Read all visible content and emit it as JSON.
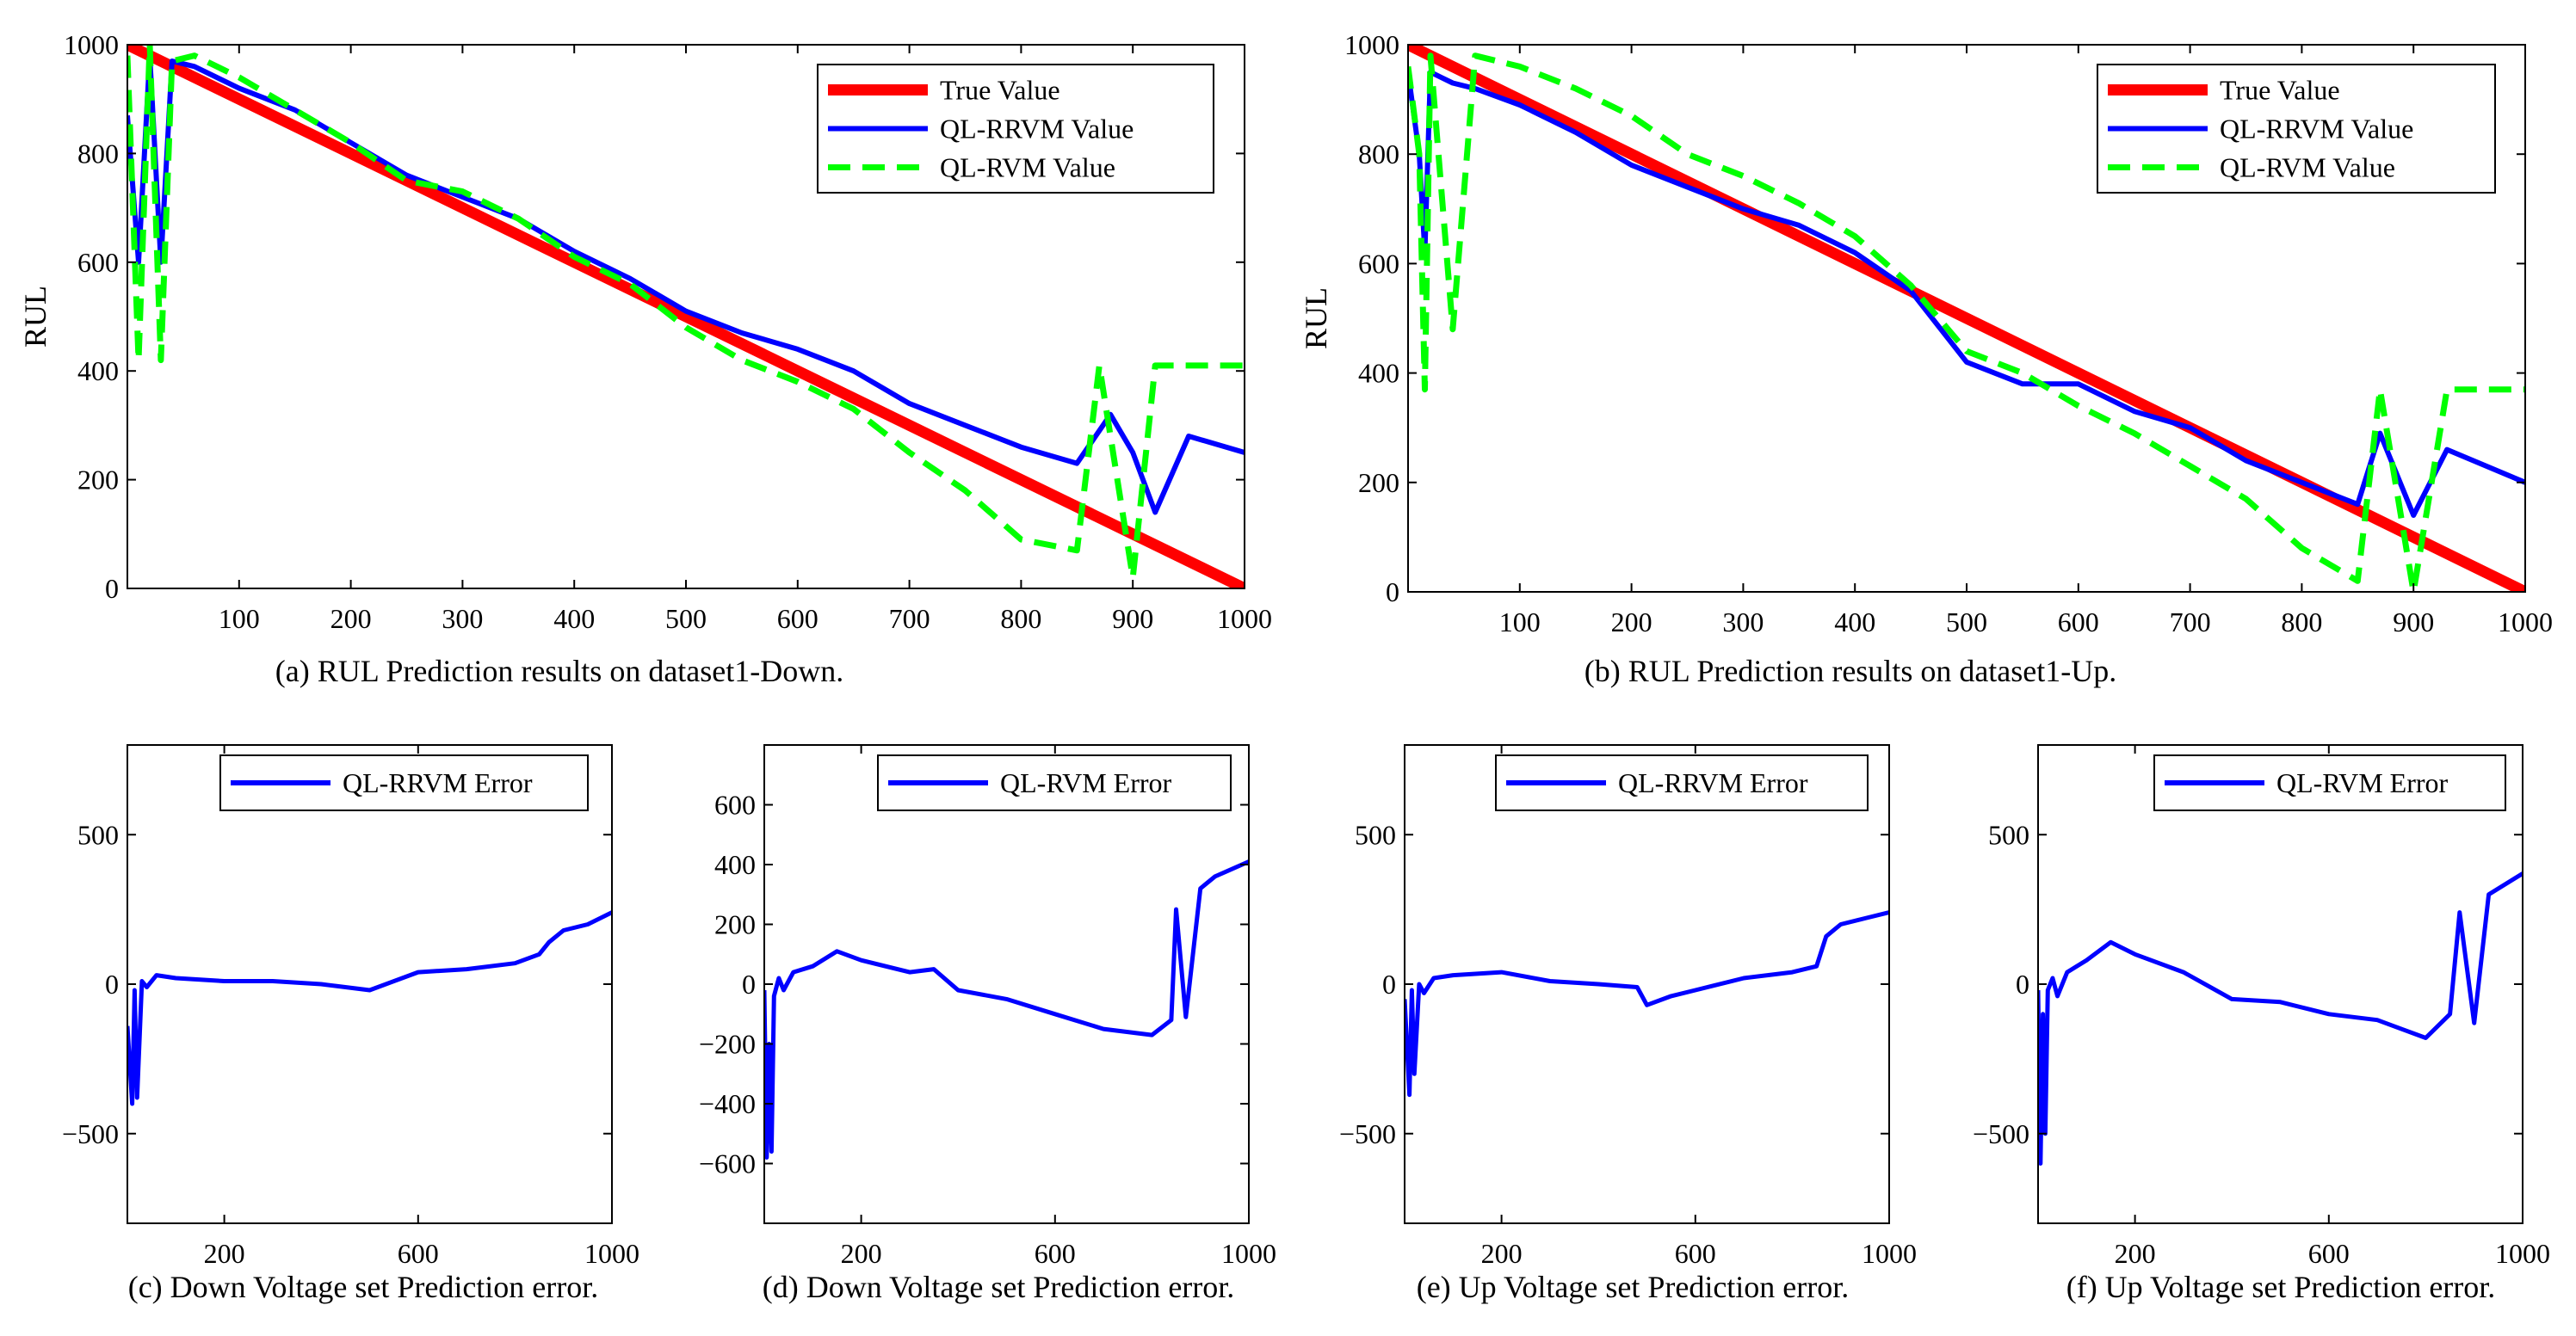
{
  "chart_data": [
    {
      "type": "line",
      "caption": "(a) RUL Prediction results on dataset1-Down.",
      "ylabel": "RUL",
      "xlim": [
        0,
        1000
      ],
      "ylim": [
        0,
        1000
      ],
      "xticks": [
        100,
        200,
        300,
        400,
        500,
        600,
        700,
        800,
        900,
        1000
      ],
      "yticks": [
        0,
        200,
        400,
        600,
        800,
        1000
      ],
      "legend_position": "top-right",
      "series": [
        {
          "name": "True Value",
          "color": "#ff0000",
          "style": "solid-thick",
          "x": [
            0,
            1000
          ],
          "y": [
            1000,
            0
          ]
        },
        {
          "name": "QL-RRVM Value",
          "color": "#0000ff",
          "style": "solid",
          "x": [
            0,
            10,
            20,
            30,
            40,
            60,
            100,
            150,
            200,
            250,
            300,
            350,
            400,
            450,
            500,
            550,
            600,
            650,
            700,
            750,
            800,
            850,
            880,
            900,
            920,
            950,
            1000
          ],
          "y": [
            870,
            600,
            980,
            600,
            970,
            960,
            920,
            880,
            820,
            760,
            720,
            680,
            620,
            570,
            510,
            470,
            440,
            400,
            340,
            300,
            260,
            230,
            320,
            250,
            140,
            280,
            250
          ]
        },
        {
          "name": "QL-RVM Value",
          "color": "#00ff00",
          "style": "dashed",
          "x": [
            0,
            10,
            20,
            30,
            40,
            60,
            100,
            150,
            200,
            250,
            300,
            350,
            400,
            450,
            500,
            550,
            600,
            650,
            700,
            750,
            800,
            850,
            870,
            900,
            920,
            950,
            1000
          ],
          "y": [
            980,
            420,
            1000,
            420,
            970,
            980,
            940,
            880,
            820,
            750,
            730,
            680,
            610,
            560,
            480,
            420,
            380,
            330,
            250,
            180,
            90,
            70,
            410,
            20,
            410,
            410,
            410
          ]
        }
      ]
    },
    {
      "type": "line",
      "caption": "(b) RUL Prediction results on dataset1-Up.",
      "ylabel": "RUL",
      "xlim": [
        0,
        1000
      ],
      "ylim": [
        0,
        1000
      ],
      "xticks": [
        100,
        200,
        300,
        400,
        500,
        600,
        700,
        800,
        900,
        1000
      ],
      "yticks": [
        0,
        200,
        400,
        600,
        800,
        1000
      ],
      "legend_position": "top-right",
      "series": [
        {
          "name": "True Value",
          "color": "#ff0000",
          "style": "solid-thick",
          "x": [
            0,
            1000
          ],
          "y": [
            1000,
            0
          ]
        },
        {
          "name": "QL-RRVM Value",
          "color": "#0000ff",
          "style": "solid",
          "x": [
            0,
            10,
            15,
            20,
            30,
            40,
            60,
            100,
            150,
            200,
            250,
            300,
            350,
            400,
            450,
            500,
            550,
            600,
            650,
            700,
            750,
            800,
            850,
            870,
            900,
            930,
            1000
          ],
          "y": [
            950,
            800,
            620,
            950,
            940,
            930,
            920,
            890,
            840,
            780,
            740,
            700,
            670,
            620,
            550,
            420,
            380,
            380,
            330,
            300,
            240,
            200,
            160,
            290,
            140,
            260,
            200
          ]
        },
        {
          "name": "QL-RVM Value",
          "color": "#00ff00",
          "style": "dashed",
          "x": [
            0,
            10,
            15,
            20,
            40,
            60,
            100,
            150,
            200,
            250,
            300,
            350,
            400,
            450,
            500,
            550,
            600,
            650,
            700,
            750,
            800,
            850,
            870,
            900,
            930,
            950,
            1000
          ],
          "y": [
            960,
            800,
            370,
            980,
            480,
            980,
            960,
            920,
            870,
            800,
            760,
            710,
            650,
            560,
            440,
            400,
            340,
            290,
            230,
            170,
            80,
            20,
            370,
            0,
            370,
            370,
            370
          ]
        }
      ]
    },
    {
      "type": "line",
      "caption": "(c) Down Voltage set Prediction error.",
      "xlim": [
        0,
        1000
      ],
      "ylim": [
        -800,
        800
      ],
      "xticks": [
        200,
        600,
        1000
      ],
      "yticks": [
        -500,
        0,
        500
      ],
      "legend_position": "top-right",
      "series": [
        {
          "name": "QL-RRVM Error",
          "color": "#0000ff",
          "x": [
            0,
            10,
            15,
            20,
            30,
            40,
            60,
            100,
            200,
            300,
            400,
            500,
            600,
            700,
            800,
            850,
            870,
            900,
            950,
            1000
          ],
          "y": [
            -140,
            -400,
            -20,
            -380,
            10,
            -10,
            30,
            20,
            10,
            10,
            0,
            -20,
            40,
            50,
            70,
            100,
            140,
            180,
            200,
            240
          ]
        }
      ]
    },
    {
      "type": "line",
      "caption": "(d) Down Voltage set Prediction error.",
      "xlim": [
        0,
        1000
      ],
      "ylim": [
        -800,
        800
      ],
      "xticks": [
        200,
        600,
        1000
      ],
      "yticks": [
        -600,
        -400,
        -200,
        0,
        200,
        400,
        600
      ],
      "legend_position": "top-right",
      "series": [
        {
          "name": "QL-RVM Error",
          "color": "#0000ff",
          "x": [
            0,
            5,
            10,
            15,
            20,
            30,
            40,
            60,
            100,
            150,
            200,
            300,
            350,
            400,
            500,
            600,
            700,
            800,
            840,
            850,
            870,
            900,
            930,
            1000
          ],
          "y": [
            -20,
            -580,
            -200,
            -560,
            -40,
            20,
            -20,
            40,
            60,
            110,
            80,
            40,
            50,
            -20,
            -50,
            -100,
            -150,
            -170,
            -120,
            250,
            -110,
            320,
            360,
            410
          ]
        }
      ]
    },
    {
      "type": "line",
      "caption": "(e) Up Voltage set Prediction error.",
      "xlim": [
        0,
        1000
      ],
      "ylim": [
        -800,
        800
      ],
      "xticks": [
        200,
        600,
        1000
      ],
      "yticks": [
        -500,
        0,
        500
      ],
      "legend_position": "top-right",
      "series": [
        {
          "name": "QL-RRVM Error",
          "color": "#0000ff",
          "x": [
            0,
            10,
            15,
            20,
            30,
            40,
            60,
            100,
            200,
            300,
            400,
            480,
            500,
            550,
            600,
            700,
            800,
            850,
            870,
            900,
            950,
            1000
          ],
          "y": [
            -50,
            -370,
            -20,
            -300,
            0,
            -30,
            20,
            30,
            40,
            10,
            0,
            -10,
            -70,
            -40,
            -20,
            20,
            40,
            60,
            160,
            200,
            220,
            240
          ]
        }
      ]
    },
    {
      "type": "line",
      "caption": "(f) Up Voltage set Prediction error.",
      "xlim": [
        0,
        1000
      ],
      "ylim": [
        -800,
        800
      ],
      "xticks": [
        200,
        600,
        1000
      ],
      "yticks": [
        -500,
        0,
        500
      ],
      "legend_position": "top-right",
      "series": [
        {
          "name": "QL-RVM Error",
          "color": "#0000ff",
          "x": [
            0,
            5,
            10,
            15,
            20,
            30,
            40,
            60,
            100,
            150,
            200,
            300,
            400,
            500,
            600,
            700,
            800,
            850,
            870,
            900,
            930,
            1000
          ],
          "y": [
            -20,
            -600,
            -100,
            -500,
            -20,
            20,
            -40,
            40,
            80,
            140,
            100,
            40,
            -50,
            -60,
            -100,
            -120,
            -180,
            -100,
            240,
            -130,
            300,
            370
          ]
        }
      ]
    }
  ]
}
